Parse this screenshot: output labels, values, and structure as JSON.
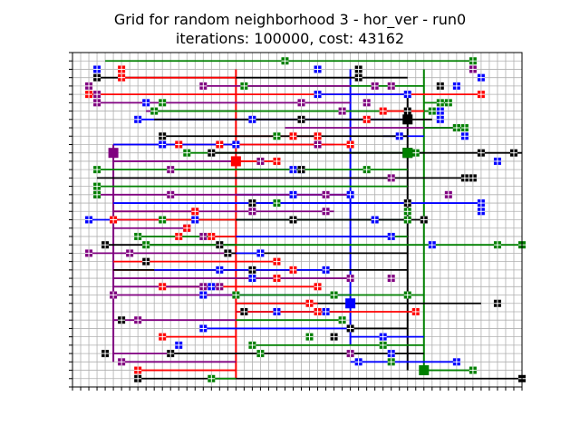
{
  "title": "Grid for random neighborhood 3 - hor_ver - run0",
  "subtitle": "iterations: 100000, cost: 43162",
  "chart_data": {
    "type": "grid-routing",
    "title": "Grid for random neighborhood 3 - hor_ver - run0",
    "subtitle": "iterations: 100000, cost: 43162",
    "xlim": [
      0,
      55
    ],
    "ylim": [
      0,
      40
    ],
    "grid": true,
    "colors": {
      "grid": "#b0b0b0",
      "red": "#ff0000",
      "green": "#008000",
      "blue": "#0000ff",
      "black": "#000000",
      "purple": "#800080"
    },
    "hubs": [
      {
        "color": "red",
        "x": 20,
        "y": 27
      },
      {
        "color": "green",
        "x": 43,
        "y": 2
      },
      {
        "color": "blue",
        "x": 34,
        "y": 10
      },
      {
        "color": "black",
        "x": 41,
        "y": 32
      },
      {
        "color": "purple",
        "x": 5,
        "y": 28
      },
      {
        "color": "black",
        "x": 41,
        "y": 28
      },
      {
        "color": "green",
        "x": 41,
        "y": 28
      }
    ],
    "trunks": [
      {
        "color": "red",
        "x": 20,
        "y": [
          1,
          38
        ]
      },
      {
        "color": "purple",
        "x": 5,
        "y": [
          3,
          29
        ]
      },
      {
        "color": "blue",
        "x": 34,
        "y": [
          5,
          38
        ]
      },
      {
        "color": "black",
        "x": 41,
        "y": [
          2,
          35
        ]
      },
      {
        "color": "green",
        "x": 43,
        "y": [
          2,
          38
        ]
      }
    ],
    "wires": [
      {
        "color": "green",
        "y": 39,
        "x": [
          4,
          49
        ],
        "px": [
          26,
          49
        ]
      },
      {
        "color": "black",
        "y": 37,
        "x": [
          3,
          41
        ],
        "px": [
          35,
          3
        ]
      },
      {
        "color": "red",
        "y": 37,
        "x": [
          6,
          20
        ],
        "px": [
          6
        ]
      },
      {
        "color": "green",
        "y": 36,
        "x": [
          21,
          43
        ],
        "px": [
          21
        ]
      },
      {
        "color": "purple",
        "y": 36,
        "x": [
          16,
          34
        ],
        "px": [
          16,
          37
        ]
      },
      {
        "color": "red",
        "y": 35,
        "x": [
          2,
          50
        ],
        "px": [
          2,
          50
        ]
      },
      {
        "color": "blue",
        "y": 35,
        "x": [
          30,
          41
        ],
        "px": [
          30,
          41
        ]
      },
      {
        "color": "purple",
        "y": 34,
        "x": [
          3,
          34
        ],
        "px": [
          3
        ]
      },
      {
        "color": "green",
        "y": 34,
        "x": [
          43,
          46
        ],
        "px": [
          45,
          46
        ]
      },
      {
        "color": "purple",
        "y": 33,
        "x": [
          9,
          20
        ],
        "px": [
          33
        ]
      },
      {
        "color": "green",
        "y": 33,
        "x": [
          10,
          44
        ],
        "px": [
          10,
          44
        ]
      },
      {
        "color": "red",
        "y": 33,
        "x": [
          38,
          43
        ],
        "px": [
          38
        ]
      },
      {
        "color": "blue",
        "y": 32,
        "x": [
          8,
          41
        ],
        "px": [
          8,
          22,
          45
        ]
      },
      {
        "color": "black",
        "y": 32,
        "x": [
          10,
          44
        ],
        "px": [
          28
        ]
      },
      {
        "color": "purple",
        "y": 31,
        "x": [
          26,
          47
        ],
        "px": [
          47
        ]
      },
      {
        "color": "green",
        "y": 31,
        "x": [
          43,
          48
        ],
        "px": [
          48
        ]
      },
      {
        "color": "red",
        "y": 30,
        "x": [
          20,
          30
        ],
        "px": [
          27,
          30
        ]
      },
      {
        "color": "blue",
        "y": 30,
        "x": [
          38,
          43
        ],
        "px": [
          40
        ]
      },
      {
        "color": "black",
        "y": 30,
        "x": [
          11,
          41
        ],
        "px": [
          11
        ]
      },
      {
        "color": "purple",
        "y": 29,
        "x": [
          5,
          32
        ],
        "px": [
          30
        ]
      },
      {
        "color": "red",
        "y": 29,
        "x": [
          13,
          34
        ],
        "px": [
          13,
          18,
          34
        ]
      },
      {
        "color": "blue",
        "y": 29,
        "x": [
          5,
          20
        ],
        "px": [
          20
        ]
      },
      {
        "color": "green",
        "y": 28,
        "x": [
          14,
          43
        ],
        "px": [
          14,
          42
        ]
      },
      {
        "color": "black",
        "y": 28,
        "x": [
          17,
          55
        ],
        "px": [
          17,
          50,
          54
        ]
      },
      {
        "color": "purple",
        "y": 27,
        "x": [
          5,
          23
        ],
        "px": [
          23
        ]
      },
      {
        "color": "red",
        "y": 27,
        "x": [
          20,
          25
        ],
        "px": [
          25
        ]
      },
      {
        "color": "blue",
        "y": 26,
        "x": [
          20,
          28
        ],
        "px": [
          28
        ]
      },
      {
        "color": "green",
        "y": 26,
        "x": [
          3,
          41
        ],
        "px": [
          3,
          36
        ]
      },
      {
        "color": "purple",
        "y": 25,
        "x": [
          5,
          39
        ],
        "px": [
          39
        ]
      },
      {
        "color": "black",
        "y": 25,
        "x": [
          3,
          48
        ],
        "px": [
          48
        ]
      },
      {
        "color": "green",
        "y": 24,
        "x": [
          3,
          41
        ],
        "px": [
          3
        ]
      },
      {
        "color": "blue",
        "y": 23,
        "x": [
          20,
          34
        ],
        "px": [
          27,
          34
        ]
      },
      {
        "color": "purple",
        "y": 23,
        "x": [
          3,
          34
        ],
        "px": [
          3,
          31
        ]
      },
      {
        "color": "black",
        "y": 22,
        "x": [
          22,
          41
        ],
        "px": [
          22,
          41
        ]
      },
      {
        "color": "blue",
        "y": 22,
        "x": [
          5,
          50
        ],
        "px": [
          50
        ]
      },
      {
        "color": "red",
        "y": 21,
        "x": [
          5,
          15
        ],
        "px": [
          15
        ]
      },
      {
        "color": "purple",
        "y": 21,
        "x": [
          5,
          32
        ],
        "px": [
          31
        ]
      },
      {
        "color": "blue",
        "y": 20,
        "x": [
          2,
          41
        ],
        "px": [
          2,
          37
        ]
      },
      {
        "color": "green",
        "y": 20,
        "x": [
          11,
          41
        ],
        "px": [
          11,
          41
        ]
      },
      {
        "color": "red",
        "y": 20,
        "x": [
          5,
          20
        ],
        "px": [
          5
        ]
      },
      {
        "color": "black",
        "y": 20,
        "x": [
          20,
          43
        ],
        "px": [
          43
        ]
      },
      {
        "color": "purple",
        "y": 19,
        "x": [
          5,
          14
        ],
        "px": [
          14
        ]
      },
      {
        "color": "green",
        "y": 18,
        "x": [
          8,
          41
        ],
        "px": [
          8
        ]
      },
      {
        "color": "red",
        "y": 18,
        "x": [
          17,
          20
        ],
        "px": [
          17
        ]
      },
      {
        "color": "blue",
        "y": 18,
        "x": [
          20,
          39
        ],
        "px": [
          39
        ]
      },
      {
        "color": "black",
        "y": 17,
        "x": [
          4,
          20
        ],
        "px": [
          4
        ]
      },
      {
        "color": "green",
        "y": 17,
        "x": [
          9,
          55
        ],
        "px": [
          9,
          55
        ]
      },
      {
        "color": "purple",
        "y": 16,
        "x": [
          2,
          20
        ],
        "px": [
          2
        ]
      },
      {
        "color": "black",
        "y": 16,
        "x": [
          19,
          41
        ],
        "px": [
          19
        ]
      },
      {
        "color": "blue",
        "y": 16,
        "x": [
          20,
          23
        ],
        "px": [
          23
        ]
      },
      {
        "color": "red",
        "y": 15,
        "x": [
          5,
          25
        ],
        "px": [
          25
        ]
      },
      {
        "color": "red",
        "y": 14,
        "x": [
          5,
          27
        ],
        "px": [
          27
        ]
      },
      {
        "color": "black",
        "y": 14,
        "x": [
          5,
          41
        ],
        "px": [
          22
        ]
      },
      {
        "color": "blue",
        "y": 14,
        "x": [
          10,
          31
        ],
        "px": [
          31
        ]
      },
      {
        "color": "purple",
        "y": 13,
        "x": [
          5,
          34
        ],
        "px": [
          34
        ]
      },
      {
        "color": "red",
        "y": 12,
        "x": [
          11,
          30
        ],
        "px": [
          11,
          30
        ]
      },
      {
        "color": "purple",
        "y": 12,
        "x": [
          5,
          18
        ],
        "px": [
          18
        ]
      },
      {
        "color": "blue",
        "y": 11,
        "x": [
          16,
          34
        ],
        "px": [
          16
        ]
      },
      {
        "color": "green",
        "y": 11,
        "x": [
          20,
          43
        ],
        "px": [
          20,
          32
        ]
      },
      {
        "color": "purple",
        "y": 11,
        "x": [
          5,
          20
        ],
        "px": [
          5
        ]
      },
      {
        "color": "black",
        "y": 10,
        "x": [
          20,
          50
        ],
        "px": [
          52
        ]
      },
      {
        "color": "red",
        "y": 10,
        "x": [
          20,
          30
        ],
        "px": [
          29
        ]
      },
      {
        "color": "blue",
        "y": 9,
        "x": [
          20,
          34
        ],
        "px": [
          25
        ]
      },
      {
        "color": "red",
        "y": 9,
        "x": [
          20,
          42
        ],
        "px": [
          42
        ]
      },
      {
        "color": "green",
        "y": 8,
        "x": [
          20,
          33
        ],
        "px": [
          33
        ]
      },
      {
        "color": "purple",
        "y": 8,
        "x": [
          5,
          20
        ],
        "px": [
          8
        ]
      },
      {
        "color": "blue",
        "y": 7,
        "x": [
          16,
          34
        ],
        "px": [
          16
        ]
      },
      {
        "color": "black",
        "y": 7,
        "x": [
          34,
          41
        ],
        "px": [
          34
        ]
      },
      {
        "color": "red",
        "y": 6,
        "x": [
          11,
          20
        ],
        "px": [
          11
        ]
      },
      {
        "color": "blue",
        "y": 6,
        "x": [
          34,
          43
        ],
        "px": [
          38
        ]
      },
      {
        "color": "green",
        "y": 5,
        "x": [
          22,
          43
        ],
        "px": [
          22
        ]
      },
      {
        "color": "purple",
        "y": 4,
        "x": [
          5,
          34
        ],
        "px": [
          34
        ]
      },
      {
        "color": "black",
        "y": 4,
        "x": [
          12,
          43
        ],
        "px": [
          12
        ]
      },
      {
        "color": "blue",
        "y": 3,
        "x": [
          34,
          47
        ],
        "px": [
          47
        ]
      },
      {
        "color": "purple",
        "y": 3,
        "x": [
          6,
          20
        ],
        "px": [
          6
        ]
      },
      {
        "color": "red",
        "y": 2,
        "x": [
          8,
          20
        ],
        "px": [
          8
        ]
      },
      {
        "color": "green",
        "y": 2,
        "x": [
          43,
          49
        ],
        "px": [
          49
        ]
      },
      {
        "color": "black",
        "y": 1,
        "x": [
          8,
          55
        ],
        "px": [
          8,
          55
        ]
      },
      {
        "color": "green",
        "y": 1,
        "x": [
          17,
          20
        ],
        "px": [
          17
        ]
      }
    ],
    "stubs": [
      {
        "color": "blue",
        "x": 3,
        "y": 38
      },
      {
        "color": "red",
        "x": 6,
        "y": 38
      },
      {
        "color": "black",
        "x": 35,
        "y": 38
      },
      {
        "color": "blue",
        "x": 30,
        "y": 38
      },
      {
        "color": "purple",
        "x": 49,
        "y": 38
      },
      {
        "color": "blue",
        "x": 50,
        "y": 37
      },
      {
        "color": "purple",
        "x": 2,
        "y": 36
      },
      {
        "color": "black",
        "x": 45,
        "y": 36
      },
      {
        "color": "blue",
        "x": 47,
        "y": 36
      },
      {
        "color": "purple",
        "x": 3,
        "y": 35
      },
      {
        "color": "blue",
        "x": 9,
        "y": 34
      },
      {
        "color": "green",
        "x": 11,
        "y": 34
      },
      {
        "color": "blue",
        "x": 45,
        "y": 33
      },
      {
        "color": "green",
        "x": 47,
        "y": 31
      },
      {
        "color": "blue",
        "x": 48,
        "y": 30
      },
      {
        "color": "purple",
        "x": 12,
        "y": 26
      },
      {
        "color": "blue",
        "x": 11,
        "y": 29
      },
      {
        "color": "blue",
        "x": 52,
        "y": 27
      },
      {
        "color": "purple",
        "x": 12,
        "y": 23
      },
      {
        "color": "green",
        "x": 3,
        "y": 23
      },
      {
        "color": "black",
        "x": 49,
        "y": 25
      },
      {
        "color": "purple",
        "x": 46,
        "y": 23
      },
      {
        "color": "blue",
        "x": 50,
        "y": 21
      },
      {
        "color": "red",
        "x": 14,
        "y": 19
      },
      {
        "color": "purple",
        "x": 16,
        "y": 18
      },
      {
        "color": "blue",
        "x": 44,
        "y": 17
      },
      {
        "color": "green",
        "x": 52,
        "y": 17
      },
      {
        "color": "black",
        "x": 9,
        "y": 15
      },
      {
        "color": "purple",
        "x": 7,
        "y": 16
      },
      {
        "color": "purple",
        "x": 16,
        "y": 12
      },
      {
        "color": "blue",
        "x": 17,
        "y": 12
      },
      {
        "color": "green",
        "x": 41,
        "y": 11
      },
      {
        "color": "black",
        "x": 6,
        "y": 8
      },
      {
        "color": "black",
        "x": 4,
        "y": 4
      },
      {
        "color": "green",
        "x": 23,
        "y": 4
      },
      {
        "color": "blue",
        "x": 39,
        "y": 4
      },
      {
        "color": "blue",
        "x": 13,
        "y": 5
      },
      {
        "color": "green",
        "x": 38,
        "y": 5
      },
      {
        "color": "purple",
        "x": 28,
        "y": 34
      },
      {
        "color": "purple",
        "x": 39,
        "y": 36
      },
      {
        "color": "black",
        "x": 28,
        "y": 26
      },
      {
        "color": "blue",
        "x": 27,
        "y": 26
      },
      {
        "color": "green",
        "x": 25,
        "y": 22
      },
      {
        "color": "black",
        "x": 27,
        "y": 20
      },
      {
        "color": "red",
        "x": 36,
        "y": 32
      },
      {
        "color": "purple",
        "x": 36,
        "y": 34
      },
      {
        "color": "black",
        "x": 41,
        "y": 33
      },
      {
        "color": "green",
        "x": 41,
        "y": 21
      },
      {
        "color": "blue",
        "x": 31,
        "y": 9
      },
      {
        "color": "black",
        "x": 21,
        "y": 9
      },
      {
        "color": "red",
        "x": 30,
        "y": 9
      },
      {
        "color": "blue",
        "x": 22,
        "y": 13
      },
      {
        "color": "red",
        "x": 25,
        "y": 13
      },
      {
        "color": "purple",
        "x": 39,
        "y": 13
      },
      {
        "color": "black",
        "x": 32,
        "y": 6
      },
      {
        "color": "green",
        "x": 29,
        "y": 6
      },
      {
        "color": "green",
        "x": 39,
        "y": 3
      },
      {
        "color": "blue",
        "x": 35,
        "y": 3
      },
      {
        "color": "purple",
        "x": 22,
        "y": 21
      },
      {
        "color": "red",
        "x": 13,
        "y": 18
      },
      {
        "color": "black",
        "x": 18,
        "y": 17
      },
      {
        "color": "blue",
        "x": 15,
        "y": 20
      },
      {
        "color": "blue",
        "x": 18,
        "y": 14
      },
      {
        "color": "green",
        "x": 25,
        "y": 30
      }
    ]
  }
}
